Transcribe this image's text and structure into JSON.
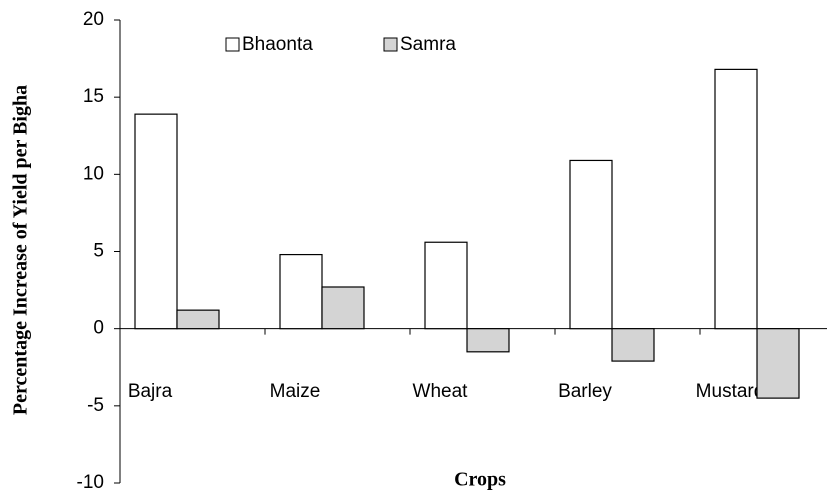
{
  "chart_data": {
    "type": "bar",
    "y_label": "Percentage Increase of Yield per Bigha",
    "x_label": "Crops",
    "categories": [
      "Bajra",
      "Maize",
      "Wheat",
      "Barley",
      "Mustard"
    ],
    "series": [
      {
        "name": "Bhaonta",
        "color": "#ffffff",
        "values": [
          13.9,
          4.8,
          5.6,
          10.9,
          16.8
        ]
      },
      {
        "name": "Samra",
        "color": "#d4d4d4",
        "values": [
          1.2,
          2.7,
          -1.5,
          -2.1,
          -4.5
        ]
      }
    ],
    "ylim": [
      -10,
      20
    ],
    "yticks": [
      -10,
      -5,
      0,
      5,
      10,
      15,
      20
    ],
    "legend": "top"
  }
}
